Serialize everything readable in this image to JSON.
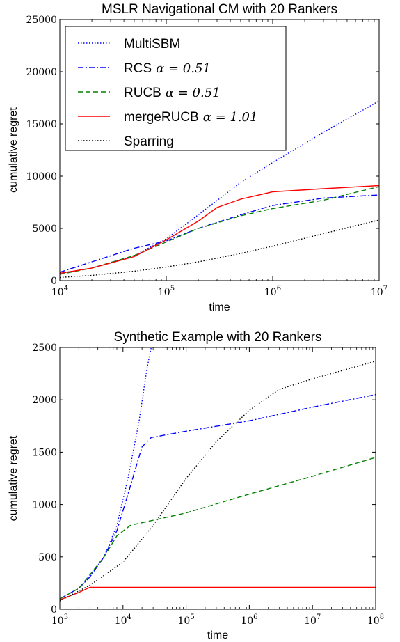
{
  "chart_data": [
    {
      "type": "line",
      "title": "MSLR Navigational CM with 20 Rankers",
      "xlabel": "time",
      "ylabel": "cumulative regret",
      "xscale": "log",
      "xlim": [
        10000,
        10000000
      ],
      "ylim": [
        0,
        25000
      ],
      "x_ticks": [
        10000,
        100000,
        1000000,
        10000000
      ],
      "x_tick_labels": [
        {
          "base": "10",
          "exp": "4"
        },
        {
          "base": "10",
          "exp": "5"
        },
        {
          "base": "10",
          "exp": "6"
        },
        {
          "base": "10",
          "exp": "7"
        }
      ],
      "y_ticks": [
        0,
        5000,
        10000,
        15000,
        20000,
        25000
      ],
      "y_tick_labels": [
        "0",
        "5000",
        "10000",
        "15000",
        "20000",
        "25000"
      ],
      "legend_position": "top-left",
      "series": [
        {
          "name": "MultiSBM",
          "math": "",
          "color": "#0000ff",
          "style": "dotted",
          "x": [
            10000,
            20000,
            50000,
            100000,
            200000,
            500000,
            1000000,
            3000000,
            10000000
          ],
          "y": [
            700,
            1200,
            2400,
            4000,
            6300,
            9400,
            11300,
            14200,
            17200
          ]
        },
        {
          "name": "RCS",
          "math": "α = 0.51",
          "color": "#0000ff",
          "style": "dashdot",
          "x": [
            10000,
            20000,
            50000,
            100000,
            200000,
            500000,
            1000000,
            3000000,
            10000000
          ],
          "y": [
            800,
            1800,
            3100,
            3800,
            5000,
            6300,
            7200,
            7900,
            8200
          ]
        },
        {
          "name": "RUCB",
          "math": "α = 0.51",
          "color": "#008000",
          "style": "dashed",
          "x": [
            10000,
            20000,
            50000,
            100000,
            200000,
            500000,
            1000000,
            3000000,
            10000000
          ],
          "y": [
            600,
            1200,
            2400,
            3700,
            5000,
            6200,
            6900,
            7700,
            9000
          ]
        },
        {
          "name": "mergeRUCB",
          "math": "α = 1.01",
          "color": "#ff0000",
          "style": "solid",
          "x": [
            10000,
            20000,
            50000,
            100000,
            200000,
            300000,
            500000,
            1000000,
            3000000,
            10000000
          ],
          "y": [
            700,
            1200,
            2300,
            3900,
            5700,
            7000,
            7800,
            8500,
            8800,
            9100
          ]
        },
        {
          "name": "Sparring",
          "math": "",
          "color": "#000000",
          "style": "dotted",
          "x": [
            10000,
            20000,
            50000,
            100000,
            200000,
            500000,
            1000000,
            3000000,
            10000000
          ],
          "y": [
            300,
            500,
            900,
            1300,
            1800,
            2600,
            3300,
            4500,
            5800
          ]
        }
      ]
    },
    {
      "type": "line",
      "title": "Synthetic Example with 20 Rankers",
      "xlabel": "time",
      "ylabel": "cumulative regret",
      "xscale": "log",
      "xlim": [
        1000,
        100000000
      ],
      "ylim": [
        0,
        2500
      ],
      "x_ticks": [
        1000,
        10000,
        100000,
        1000000,
        10000000,
        100000000
      ],
      "x_tick_labels": [
        {
          "base": "10",
          "exp": "3"
        },
        {
          "base": "10",
          "exp": "4"
        },
        {
          "base": "10",
          "exp": "5"
        },
        {
          "base": "10",
          "exp": "6"
        },
        {
          "base": "10",
          "exp": "7"
        },
        {
          "base": "10",
          "exp": "8"
        }
      ],
      "y_ticks": [
        0,
        500,
        1000,
        1500,
        2000,
        2500
      ],
      "y_tick_labels": [
        "0",
        "500",
        "1000",
        "1500",
        "2000",
        "2500"
      ],
      "legend_position": "none",
      "series": [
        {
          "name": "MultiSBM",
          "color": "#0000ff",
          "style": "dotted",
          "x": [
            1000,
            2000,
            3000,
            5000,
            8000,
            12000,
            18000,
            24000,
            28000
          ],
          "y": [
            100,
            200,
            310,
            500,
            800,
            1250,
            1800,
            2300,
            2500
          ]
        },
        {
          "name": "RCS",
          "color": "#0000ff",
          "style": "dashdot",
          "x": [
            1000,
            2000,
            3000,
            5000,
            8000,
            12000,
            20000,
            28000,
            100000,
            1000000,
            10000000,
            100000000
          ],
          "y": [
            100,
            200,
            310,
            500,
            750,
            1100,
            1550,
            1640,
            1700,
            1800,
            1930,
            2050
          ]
        },
        {
          "name": "RUCB",
          "color": "#008000",
          "style": "dashed",
          "x": [
            1000,
            2000,
            3000,
            5000,
            8000,
            13000,
            15000,
            100000,
            1000000,
            10000000,
            100000000
          ],
          "y": [
            100,
            200,
            330,
            500,
            700,
            800,
            810,
            920,
            1100,
            1270,
            1450
          ]
        },
        {
          "name": "mergeRUCB",
          "color": "#ff0000",
          "style": "solid",
          "x": [
            1000,
            2000,
            3000,
            100000000
          ],
          "y": [
            90,
            160,
            210,
            210
          ]
        },
        {
          "name": "Sparring",
          "color": "#000000",
          "style": "dotted",
          "x": [
            1000,
            3000,
            10000,
            30000,
            100000,
            300000,
            1000000,
            3000000,
            10000000,
            100000000
          ],
          "y": [
            80,
            230,
            450,
            800,
            1250,
            1600,
            1900,
            2100,
            2200,
            2370
          ]
        }
      ]
    }
  ]
}
